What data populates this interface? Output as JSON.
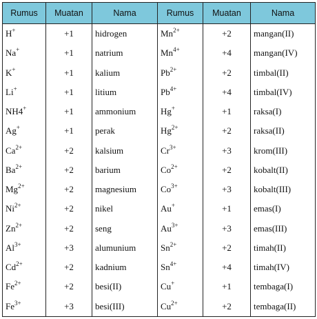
{
  "headers": [
    "Rumus",
    "Muatan",
    "Nama",
    "Rumus",
    "Muatan",
    "Nama"
  ],
  "rows": [
    {
      "f1": "H",
      "s1": "+",
      "c1": "+1",
      "n1": "hidrogen",
      "f2": "Mn",
      "s2": "2+",
      "c2": "+2",
      "n2": "mangan(II)"
    },
    {
      "f1": "Na",
      "s1": "+",
      "c1": "+1",
      "n1": "natrium",
      "f2": "Mn",
      "s2": "4+",
      "c2": "+4",
      "n2": "mangan(IV)"
    },
    {
      "f1": "K",
      "s1": "+",
      "c1": "+1",
      "n1": "kalium",
      "f2": "Pb",
      "s2": "2+",
      "c2": "+2",
      "n2": "timbal(II)"
    },
    {
      "f1": "Li",
      "s1": "+",
      "c1": "+1",
      "n1": "litium",
      "f2": "Pb",
      "s2": "4+",
      "c2": "+4",
      "n2": "timbal(IV)"
    },
    {
      "f1": "NH4",
      "s1": "+",
      "c1": "+1",
      "n1": "ammonium",
      "f2": "Hg",
      "s2": "+",
      "c2": "+1",
      "n2": "raksa(I)"
    },
    {
      "f1": "Ag",
      "s1": "+",
      "c1": "+1",
      "n1": "perak",
      "f2": "Hg",
      "s2": "2+",
      "c2": "+2",
      "n2": "raksa(II)"
    },
    {
      "f1": "Ca",
      "s1": "2+",
      "c1": "+2",
      "n1": "kalsium",
      "f2": "Cr",
      "s2": "3+",
      "c2": "+3",
      "n2": "krom(III)"
    },
    {
      "f1": "Ba",
      "s1": "2+",
      "c1": "+2",
      "n1": "barium",
      "f2": "Co",
      "s2": "2+",
      "c2": "+2",
      "n2": "kobalt(II)"
    },
    {
      "f1": "Mg",
      "s1": "2+",
      "c1": "+2",
      "n1": "magnesium",
      "f2": "Co",
      "s2": "3+",
      "c2": "+3",
      "n2": "kobalt(III)"
    },
    {
      "f1": "Ni",
      "s1": "2+",
      "c1": "+2",
      "n1": "nikel",
      "f2": "Au",
      "s2": "+",
      "c2": "+1",
      "n2": "emas(I)"
    },
    {
      "f1": "Zn",
      "s1": "2+",
      "c1": "+2",
      "n1": "seng",
      "f2": "Au",
      "s2": "3+",
      "c2": "+3",
      "n2": "emas(III)"
    },
    {
      "f1": "Al",
      "s1": "3+",
      "c1": "+3",
      "n1": "alumunium",
      "f2": "Sn",
      "s2": "2+",
      "c2": "+2",
      "n2": "timah(II)"
    },
    {
      "f1": "Cd",
      "s1": "2+",
      "c1": "+2",
      "n1": "kadnium",
      "f2": "Sn",
      "s2": "4+",
      "c2": "+4",
      "n2": "timah(IV)"
    },
    {
      "f1": "Fe",
      "s1": "2+",
      "c1": "+2",
      "n1": "besi(II)",
      "f2": "Cu",
      "s2": "+",
      "c2": "+1",
      "n2": "tembaga(I)"
    },
    {
      "f1": "Fe",
      "s1": "3+",
      "c1": "+3",
      "n1": "besi(III)",
      "f2": "Cu",
      "s2": "2+",
      "c2": "+2",
      "n2": "tembaga(II)"
    }
  ],
  "colors": {
    "header_bg": "#7ec8dc",
    "border": "#222222",
    "text": "#111111"
  }
}
